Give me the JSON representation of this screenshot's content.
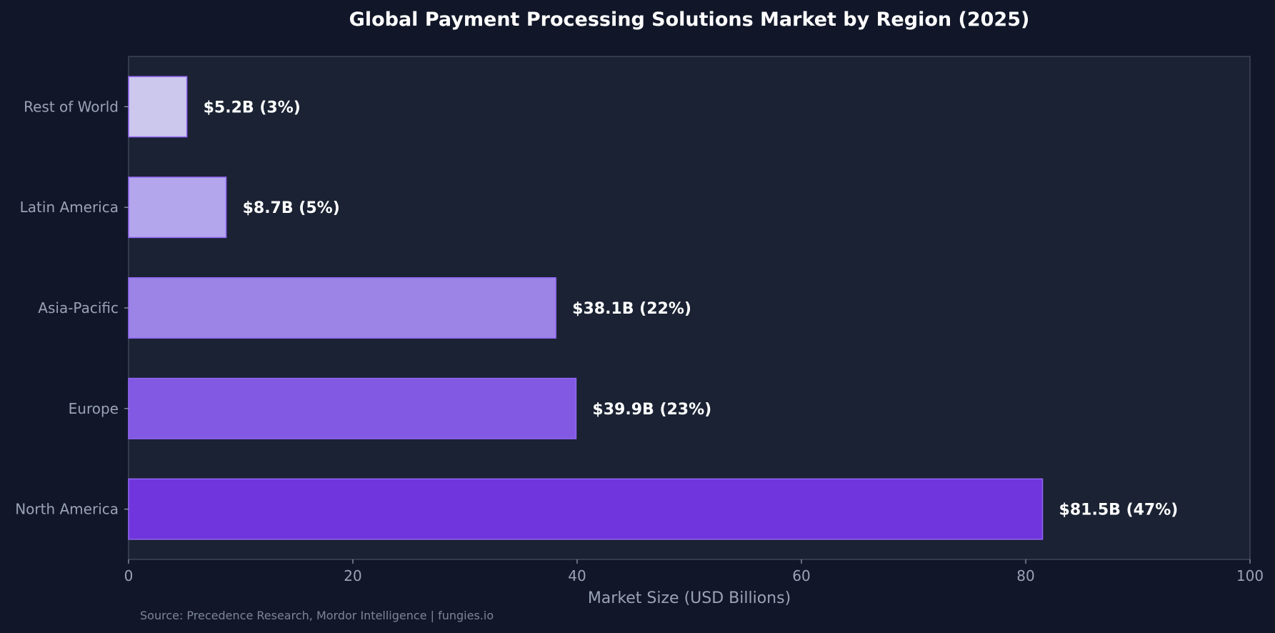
{
  "chart_data": {
    "type": "bar",
    "orientation": "horizontal",
    "title": "Global Payment Processing Solutions Market by Region (2025)",
    "xlabel": "Market Size (USD Billions)",
    "ylabel": "",
    "xlim": [
      0,
      100
    ],
    "xticks": [
      "0",
      "20",
      "40",
      "60",
      "80",
      "100"
    ],
    "grid": false,
    "categories": [
      "North America",
      "Europe",
      "Asia-Pacific",
      "Latin America",
      "Rest of World"
    ],
    "values": [
      81.5,
      39.9,
      38.1,
      8.7,
      5.2
    ],
    "data_labels": [
      "$81.5B (47%)",
      "$39.9B (23%)",
      "$38.1B (22%)",
      "$8.7B (5%)",
      "$5.2B (3%)"
    ],
    "bar_colors": [
      "#7035dc",
      "#8159e2",
      "#9b84e6",
      "#b3a6ec",
      "#ccc7ed"
    ],
    "bar_edge_color": "#9366f5",
    "source": "Source: Precedence Research, Mordor Intelligence | fungies.io"
  },
  "colors": {
    "page_background": "#111729",
    "plot_background": "#1a2233",
    "axis": "#3c4557"
  }
}
